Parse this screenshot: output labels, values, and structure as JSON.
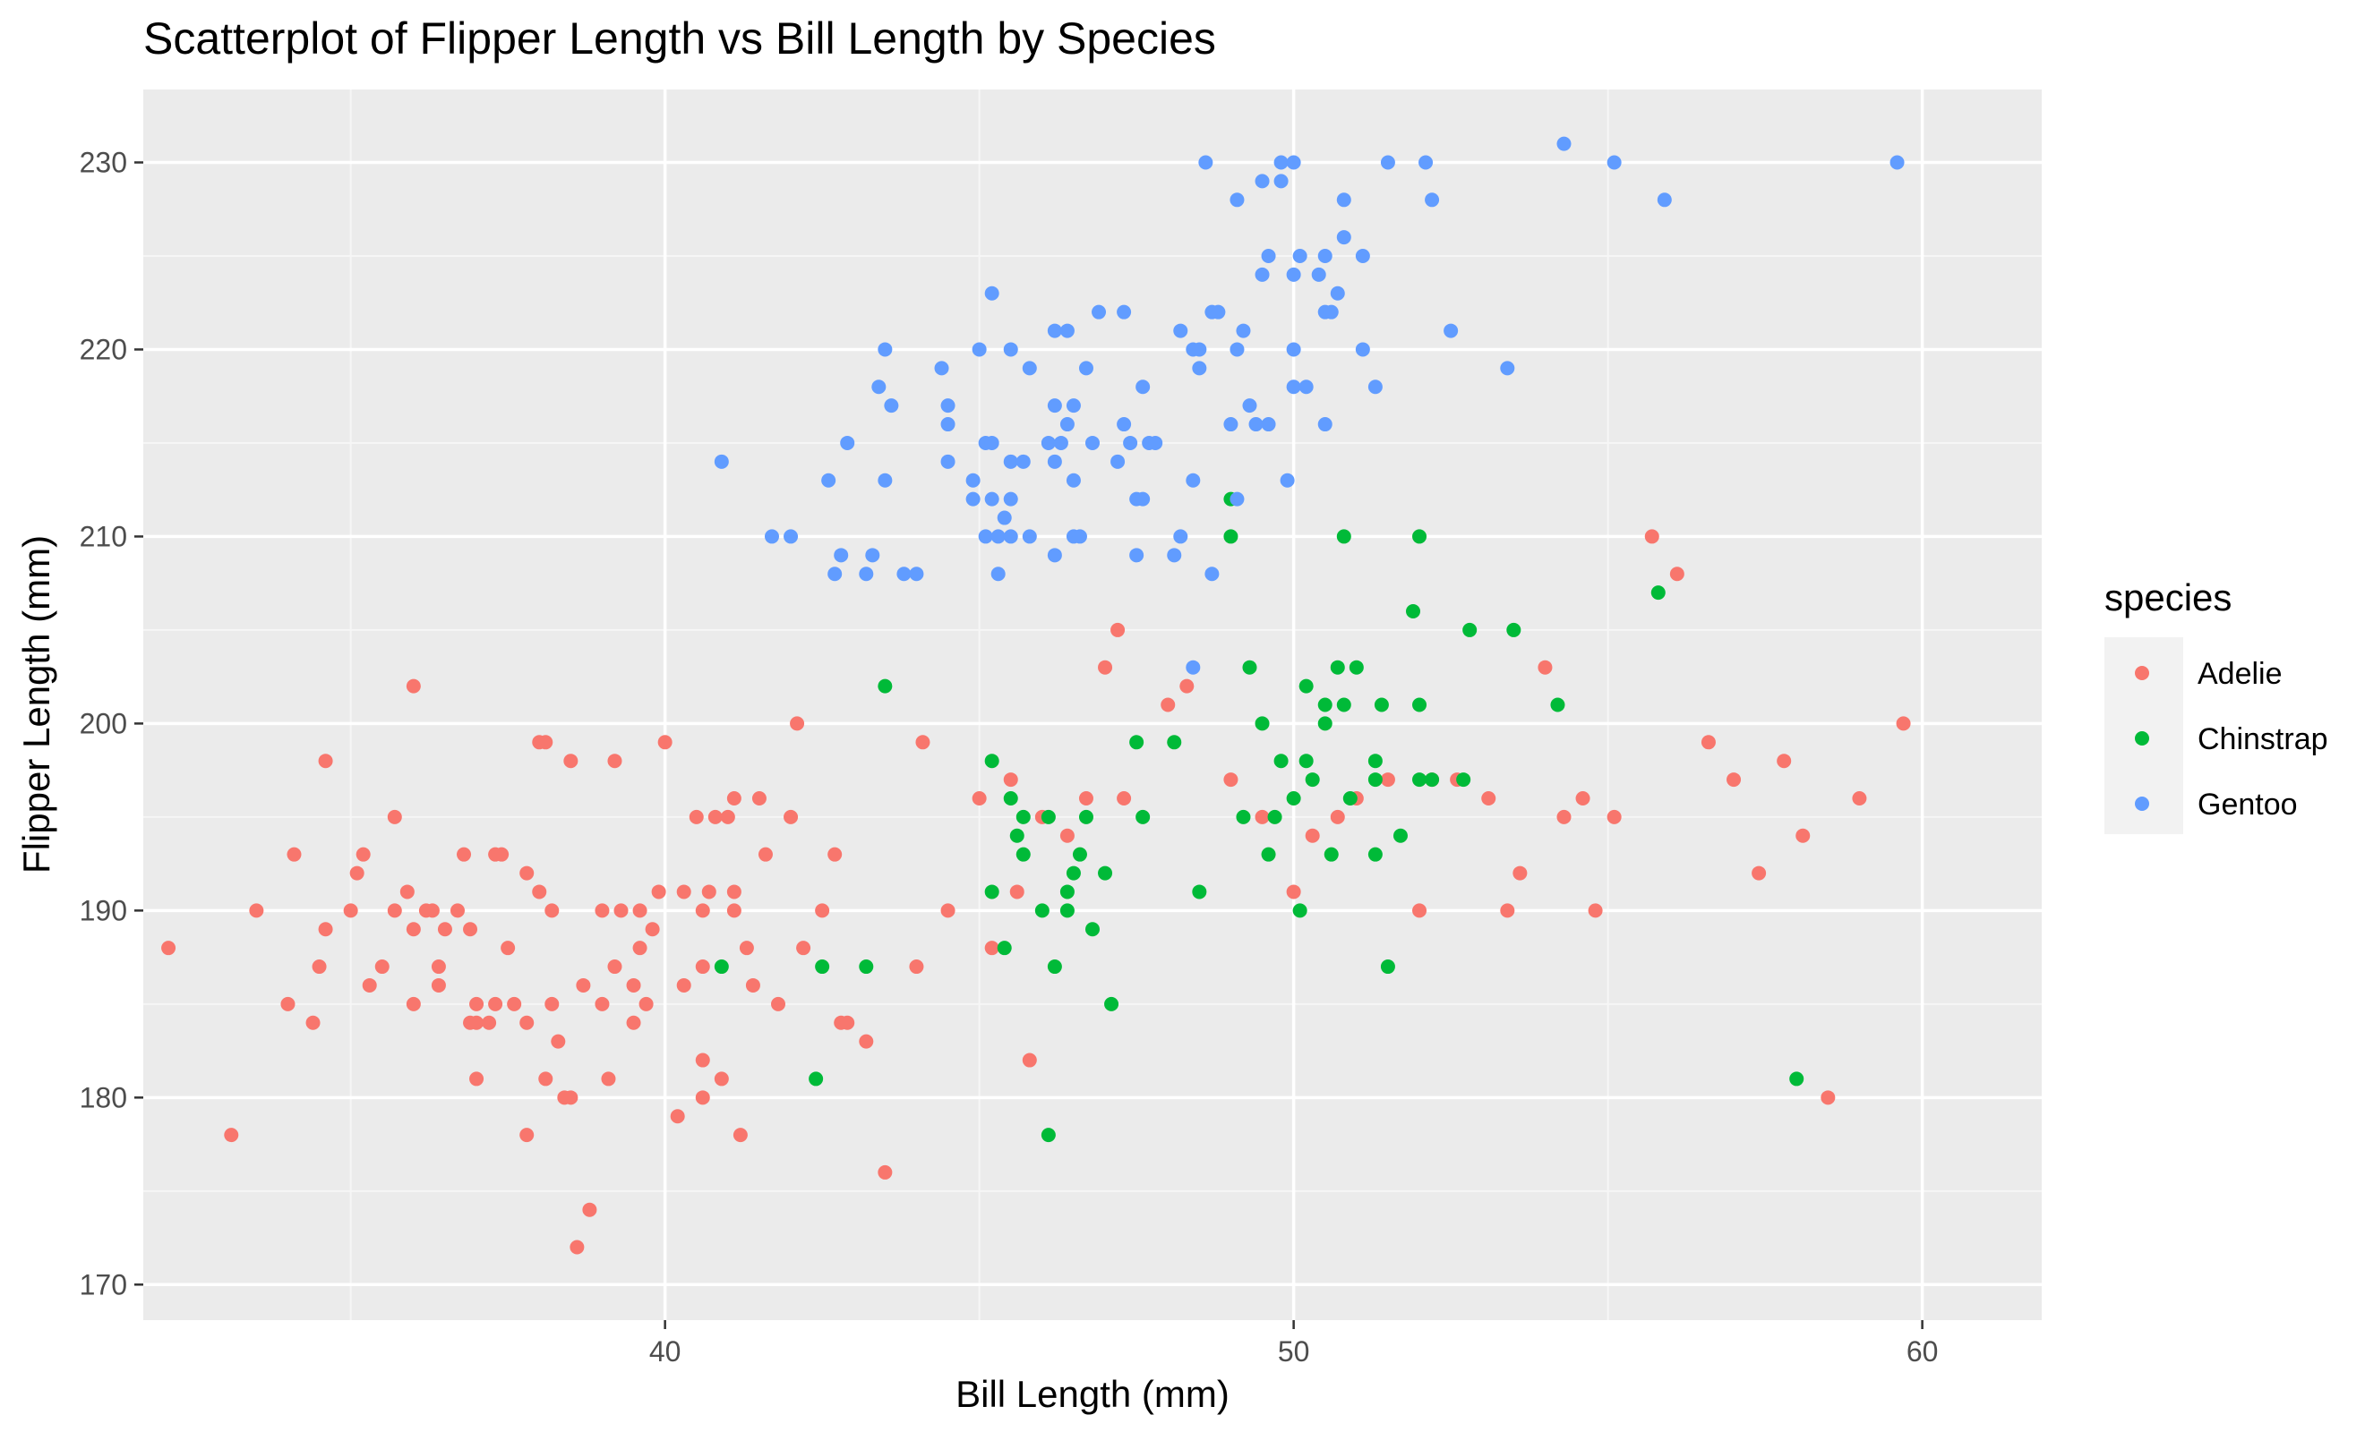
{
  "chart_data": {
    "type": "scatter",
    "title": "Scatterplot of Flipper Length vs Bill Length by Species",
    "xlabel": "Bill Length (mm)",
    "ylabel": "Flipper Length (mm)",
    "xlim": [
      31.7,
      61.9
    ],
    "ylim": [
      168.1,
      233.9
    ],
    "x_ticks": [
      40,
      50,
      60
    ],
    "y_ticks": [
      170,
      180,
      190,
      200,
      210,
      220,
      230
    ],
    "grid": true,
    "legend": {
      "title": "species",
      "position": "right"
    },
    "series": [
      {
        "name": "Adelie",
        "color": "#F8766D",
        "points": [
          [
            32.1,
            188
          ],
          [
            33.1,
            178
          ],
          [
            33.5,
            190
          ],
          [
            34.0,
            185
          ],
          [
            34.1,
            193
          ],
          [
            34.4,
            184
          ],
          [
            34.5,
            187
          ],
          [
            34.6,
            189
          ],
          [
            34.6,
            198
          ],
          [
            35.0,
            190
          ],
          [
            35.1,
            192
          ],
          [
            35.2,
            193
          ],
          [
            35.3,
            186
          ],
          [
            35.5,
            187
          ],
          [
            35.7,
            195
          ],
          [
            35.7,
            190
          ],
          [
            35.9,
            191
          ],
          [
            36.0,
            185
          ],
          [
            36.0,
            202
          ],
          [
            36.0,
            189
          ],
          [
            36.2,
            190
          ],
          [
            36.3,
            190
          ],
          [
            36.4,
            186
          ],
          [
            36.4,
            187
          ],
          [
            36.5,
            189
          ],
          [
            36.7,
            190
          ],
          [
            36.8,
            193
          ],
          [
            36.9,
            189
          ],
          [
            36.9,
            184
          ],
          [
            37.0,
            184
          ],
          [
            37.0,
            181
          ],
          [
            37.0,
            185
          ],
          [
            37.2,
            184
          ],
          [
            37.3,
            193
          ],
          [
            37.3,
            185
          ],
          [
            37.4,
            193
          ],
          [
            37.5,
            188
          ],
          [
            37.6,
            185
          ],
          [
            37.8,
            184
          ],
          [
            37.8,
            178
          ],
          [
            37.8,
            192
          ],
          [
            38.0,
            199
          ],
          [
            38.0,
            191
          ],
          [
            38.1,
            199
          ],
          [
            38.1,
            181
          ],
          [
            38.2,
            185
          ],
          [
            38.2,
            190
          ],
          [
            38.3,
            183
          ],
          [
            38.4,
            180
          ],
          [
            38.5,
            180
          ],
          [
            38.5,
            198
          ],
          [
            38.6,
            172
          ],
          [
            38.7,
            186
          ],
          [
            38.8,
            174
          ],
          [
            39.0,
            190
          ],
          [
            39.0,
            185
          ],
          [
            39.1,
            181
          ],
          [
            39.2,
            198
          ],
          [
            39.2,
            187
          ],
          [
            39.3,
            190
          ],
          [
            39.5,
            186
          ],
          [
            39.5,
            184
          ],
          [
            39.6,
            190
          ],
          [
            39.6,
            188
          ],
          [
            39.7,
            185
          ],
          [
            39.8,
            189
          ],
          [
            39.9,
            191
          ],
          [
            40.0,
            199
          ],
          [
            40.2,
            179
          ],
          [
            40.3,
            186
          ],
          [
            40.3,
            191
          ],
          [
            40.5,
            195
          ],
          [
            40.6,
            190
          ],
          [
            40.6,
            187
          ],
          [
            40.6,
            182
          ],
          [
            40.6,
            180
          ],
          [
            40.7,
            191
          ],
          [
            40.8,
            195
          ],
          [
            40.9,
            181
          ],
          [
            41.0,
            195
          ],
          [
            41.1,
            196
          ],
          [
            41.1,
            191
          ],
          [
            41.1,
            190
          ],
          [
            41.2,
            178
          ],
          [
            41.3,
            188
          ],
          [
            41.4,
            186
          ],
          [
            41.5,
            196
          ],
          [
            41.6,
            193
          ],
          [
            41.8,
            185
          ],
          [
            42.0,
            195
          ],
          [
            42.1,
            200
          ],
          [
            42.2,
            188
          ],
          [
            42.5,
            190
          ],
          [
            42.7,
            193
          ],
          [
            42.8,
            184
          ],
          [
            42.9,
            184
          ],
          [
            43.2,
            183
          ],
          [
            43.5,
            176
          ],
          [
            44.0,
            187
          ],
          [
            44.1,
            199
          ],
          [
            44.5,
            190
          ],
          [
            45.0,
            196
          ],
          [
            45.2,
            188
          ],
          [
            45.6,
            191
          ],
          [
            45.8,
            182
          ],
          [
            46.0,
            195
          ],
          [
            46.4,
            194
          ],
          [
            45.5,
            197
          ],
          [
            46.7,
            196
          ],
          [
            47.0,
            203
          ],
          [
            47.2,
            205
          ],
          [
            47.3,
            196
          ],
          [
            48.0,
            201
          ],
          [
            48.3,
            202
          ],
          [
            49.0,
            197
          ],
          [
            49.5,
            195
          ],
          [
            50.0,
            191
          ],
          [
            50.3,
            194
          ],
          [
            50.7,
            195
          ],
          [
            51.0,
            196
          ],
          [
            51.5,
            197
          ],
          [
            52.0,
            190
          ],
          [
            52.2,
            197
          ],
          [
            52.6,
            197
          ],
          [
            53.1,
            196
          ],
          [
            53.4,
            190
          ],
          [
            53.6,
            192
          ],
          [
            54.0,
            203
          ],
          [
            54.3,
            195
          ],
          [
            54.6,
            196
          ],
          [
            54.8,
            190
          ],
          [
            55.1,
            195
          ],
          [
            55.7,
            210
          ],
          [
            56.1,
            208
          ],
          [
            56.6,
            199
          ],
          [
            57.0,
            197
          ],
          [
            57.4,
            192
          ],
          [
            57.8,
            198
          ],
          [
            58.1,
            194
          ],
          [
            58.5,
            180
          ],
          [
            59.0,
            196
          ],
          [
            59.7,
            200
          ]
        ]
      },
      {
        "name": "Chinstrap",
        "color": "#00BA38",
        "points": [
          [
            40.9,
            187
          ],
          [
            42.4,
            181
          ],
          [
            42.5,
            187
          ],
          [
            43.2,
            187
          ],
          [
            43.5,
            202
          ],
          [
            45.2,
            198
          ],
          [
            45.2,
            191
          ],
          [
            45.4,
            188
          ],
          [
            45.5,
            196
          ],
          [
            45.6,
            194
          ],
          [
            45.7,
            195
          ],
          [
            45.7,
            193
          ],
          [
            46.0,
            190
          ],
          [
            46.1,
            195
          ],
          [
            46.1,
            178
          ],
          [
            46.2,
            187
          ],
          [
            46.4,
            191
          ],
          [
            46.4,
            190
          ],
          [
            46.5,
            192
          ],
          [
            46.6,
            193
          ],
          [
            46.7,
            195
          ],
          [
            46.8,
            189
          ],
          [
            47.0,
            192
          ],
          [
            47.1,
            185
          ],
          [
            47.5,
            199
          ],
          [
            47.6,
            195
          ],
          [
            48.1,
            199
          ],
          [
            48.5,
            191
          ],
          [
            49.0,
            212
          ],
          [
            49.0,
            210
          ],
          [
            49.2,
            195
          ],
          [
            49.3,
            203
          ],
          [
            49.5,
            200
          ],
          [
            49.6,
            193
          ],
          [
            49.7,
            195
          ],
          [
            49.8,
            198
          ],
          [
            50.0,
            196
          ],
          [
            50.1,
            190
          ],
          [
            50.2,
            202
          ],
          [
            50.2,
            198
          ],
          [
            50.3,
            197
          ],
          [
            50.5,
            201
          ],
          [
            50.5,
            200
          ],
          [
            50.6,
            193
          ],
          [
            50.7,
            203
          ],
          [
            50.8,
            201
          ],
          [
            50.8,
            210
          ],
          [
            50.9,
            196
          ],
          [
            51.0,
            203
          ],
          [
            51.3,
            193
          ],
          [
            51.3,
            197
          ],
          [
            51.3,
            198
          ],
          [
            51.4,
            201
          ],
          [
            51.5,
            187
          ],
          [
            51.7,
            194
          ],
          [
            51.9,
            206
          ],
          [
            52.0,
            197
          ],
          [
            52.0,
            201
          ],
          [
            52.0,
            210
          ],
          [
            52.2,
            197
          ],
          [
            52.7,
            197
          ],
          [
            52.8,
            205
          ],
          [
            53.5,
            205
          ],
          [
            54.2,
            201
          ],
          [
            55.8,
            207
          ],
          [
            58.0,
            181
          ]
        ]
      },
      {
        "name": "Gentoo",
        "color": "#619CFF",
        "points": [
          [
            40.9,
            214
          ],
          [
            41.7,
            210
          ],
          [
            42.0,
            210
          ],
          [
            42.6,
            213
          ],
          [
            42.7,
            208
          ],
          [
            42.8,
            209
          ],
          [
            42.9,
            215
          ],
          [
            43.2,
            208
          ],
          [
            43.3,
            209
          ],
          [
            43.4,
            218
          ],
          [
            43.5,
            213
          ],
          [
            43.5,
            220
          ],
          [
            43.6,
            217
          ],
          [
            43.8,
            208
          ],
          [
            44.0,
            208
          ],
          [
            44.4,
            219
          ],
          [
            44.5,
            217
          ],
          [
            44.5,
            216
          ],
          [
            44.5,
            214
          ],
          [
            44.9,
            213
          ],
          [
            44.9,
            212
          ],
          [
            45.0,
            220
          ],
          [
            45.1,
            210
          ],
          [
            45.1,
            215
          ],
          [
            45.2,
            215
          ],
          [
            45.2,
            212
          ],
          [
            45.2,
            223
          ],
          [
            45.3,
            210
          ],
          [
            45.3,
            208
          ],
          [
            45.4,
            211
          ],
          [
            45.5,
            210
          ],
          [
            45.5,
            220
          ],
          [
            45.5,
            214
          ],
          [
            45.5,
            212
          ],
          [
            45.7,
            214
          ],
          [
            45.8,
            210
          ],
          [
            45.8,
            219
          ],
          [
            46.1,
            215
          ],
          [
            46.2,
            214
          ],
          [
            46.2,
            209
          ],
          [
            46.2,
            217
          ],
          [
            46.2,
            221
          ],
          [
            46.3,
            215
          ],
          [
            46.4,
            216
          ],
          [
            46.4,
            221
          ],
          [
            46.5,
            213
          ],
          [
            46.5,
            217
          ],
          [
            46.5,
            210
          ],
          [
            46.6,
            210
          ],
          [
            46.7,
            219
          ],
          [
            46.8,
            215
          ],
          [
            46.9,
            222
          ],
          [
            47.2,
            214
          ],
          [
            47.3,
            216
          ],
          [
            47.4,
            215
          ],
          [
            47.3,
            222
          ],
          [
            47.5,
            212
          ],
          [
            47.6,
            218
          ],
          [
            47.6,
            212
          ],
          [
            47.5,
            209
          ],
          [
            47.7,
            215
          ],
          [
            47.8,
            215
          ],
          [
            48.1,
            209
          ],
          [
            48.2,
            210
          ],
          [
            48.2,
            221
          ],
          [
            48.4,
            213
          ],
          [
            48.4,
            220
          ],
          [
            48.4,
            203
          ],
          [
            48.5,
            220
          ],
          [
            48.5,
            219
          ],
          [
            48.6,
            230
          ],
          [
            48.7,
            208
          ],
          [
            48.7,
            222
          ],
          [
            48.8,
            222
          ],
          [
            49.0,
            216
          ],
          [
            49.1,
            212
          ],
          [
            49.1,
            220
          ],
          [
            49.1,
            228
          ],
          [
            49.2,
            221
          ],
          [
            49.3,
            217
          ],
          [
            49.4,
            216
          ],
          [
            49.5,
            224
          ],
          [
            49.5,
            229
          ],
          [
            49.6,
            225
          ],
          [
            49.6,
            216
          ],
          [
            49.8,
            229
          ],
          [
            49.8,
            230
          ],
          [
            49.9,
            213
          ],
          [
            50.0,
            230
          ],
          [
            50.0,
            224
          ],
          [
            50.0,
            220
          ],
          [
            50.0,
            218
          ],
          [
            50.1,
            225
          ],
          [
            50.2,
            218
          ],
          [
            50.4,
            224
          ],
          [
            50.5,
            222
          ],
          [
            50.5,
            216
          ],
          [
            50.5,
            225
          ],
          [
            50.6,
            222
          ],
          [
            50.7,
            223
          ],
          [
            50.8,
            226
          ],
          [
            50.8,
            228
          ],
          [
            51.1,
            220
          ],
          [
            51.1,
            225
          ],
          [
            51.3,
            218
          ],
          [
            51.5,
            230
          ],
          [
            52.1,
            230
          ],
          [
            52.2,
            228
          ],
          [
            52.5,
            221
          ],
          [
            53.4,
            219
          ],
          [
            54.3,
            231
          ],
          [
            55.1,
            230
          ],
          [
            55.9,
            228
          ],
          [
            59.6,
            230
          ]
        ]
      }
    ]
  }
}
